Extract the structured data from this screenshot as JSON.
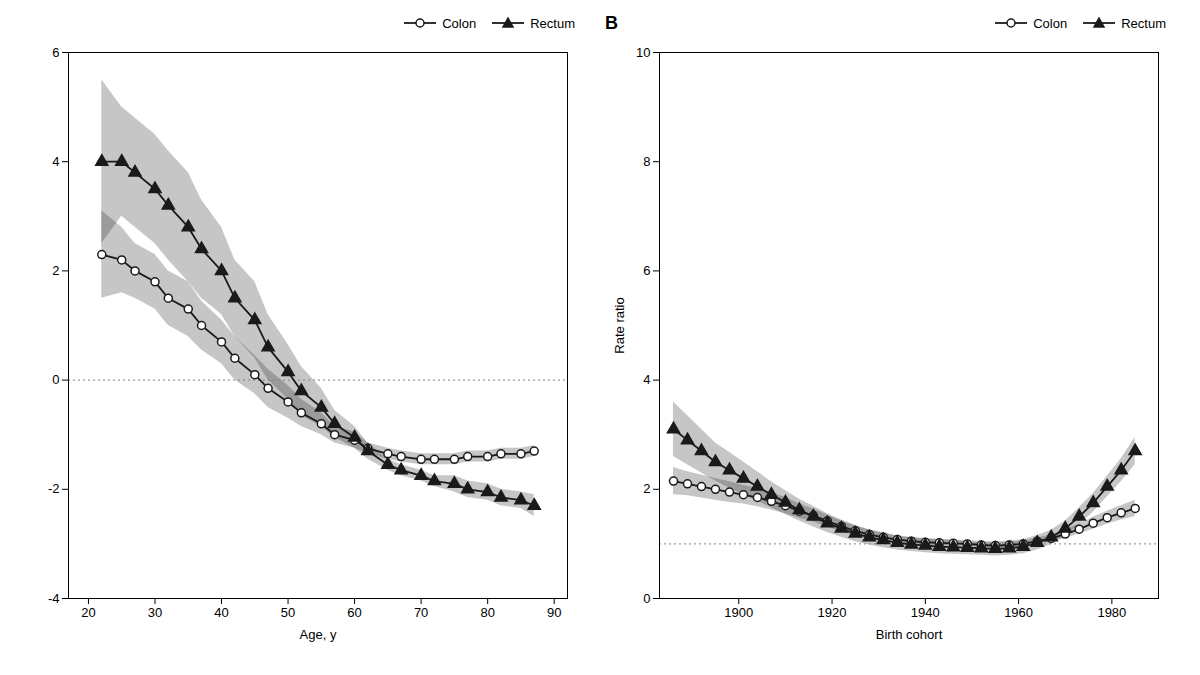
{
  "chart_data": [
    {
      "type": "line",
      "xlabel": "Age, y",
      "xlim": [
        17,
        92
      ],
      "ylim": [
        -4,
        6
      ],
      "xticks": [
        20,
        30,
        40,
        50,
        60,
        70,
        80,
        90
      ],
      "yticks": [
        -4,
        -2,
        0,
        2,
        4,
        6
      ],
      "reference_line": 0,
      "legend": "upper right",
      "series": [
        {
          "name": "Colon",
          "color": "#1a1a1a",
          "marker": "circle",
          "x": [
            22,
            25,
            27,
            30,
            32,
            35,
            37,
            40,
            42,
            45,
            47,
            50,
            52,
            55,
            57,
            60,
            62,
            65,
            67,
            70,
            72,
            75,
            77,
            80,
            82,
            85,
            87
          ],
          "values": [
            2.3,
            2.2,
            2.0,
            1.8,
            1.5,
            1.3,
            1.0,
            0.7,
            0.4,
            0.1,
            -0.15,
            -0.4,
            -0.6,
            -0.8,
            -1.0,
            -1.1,
            -1.25,
            -1.35,
            -1.4,
            -1.45,
            -1.45,
            -1.45,
            -1.4,
            -1.4,
            -1.35,
            -1.35,
            -1.3
          ],
          "lower": [
            1.5,
            1.6,
            1.5,
            1.3,
            1.0,
            0.8,
            0.55,
            0.3,
            0.0,
            -0.25,
            -0.5,
            -0.7,
            -0.85,
            -1.0,
            -1.15,
            -1.25,
            -1.35,
            -1.45,
            -1.5,
            -1.55,
            -1.55,
            -1.55,
            -1.5,
            -1.5,
            -1.45,
            -1.45,
            -1.4
          ],
          "upper": [
            3.1,
            2.8,
            2.5,
            2.3,
            2.0,
            1.8,
            1.45,
            1.1,
            0.8,
            0.45,
            0.2,
            -0.1,
            -0.35,
            -0.6,
            -0.85,
            -0.95,
            -1.15,
            -1.25,
            -1.3,
            -1.35,
            -1.35,
            -1.35,
            -1.3,
            -1.3,
            -1.25,
            -1.25,
            -1.2
          ]
        },
        {
          "name": "Rectum",
          "color": "#1a1a1a",
          "marker": "triangle",
          "x": [
            22,
            25,
            27,
            30,
            32,
            35,
            37,
            40,
            42,
            45,
            47,
            50,
            52,
            55,
            57,
            60,
            62,
            65,
            67,
            70,
            72,
            75,
            77,
            80,
            82,
            85,
            87
          ],
          "values": [
            4.0,
            4.0,
            3.8,
            3.5,
            3.2,
            2.8,
            2.4,
            2.0,
            1.5,
            1.1,
            0.6,
            0.15,
            -0.2,
            -0.5,
            -0.8,
            -1.05,
            -1.3,
            -1.55,
            -1.65,
            -1.75,
            -1.85,
            -1.9,
            -2.0,
            -2.05,
            -2.15,
            -2.2,
            -2.3
          ],
          "lower": [
            2.5,
            3.0,
            2.8,
            2.5,
            2.2,
            1.8,
            1.5,
            1.2,
            0.8,
            0.4,
            0.0,
            -0.35,
            -0.65,
            -0.85,
            -1.05,
            -1.25,
            -1.45,
            -1.65,
            -1.75,
            -1.85,
            -1.95,
            -2.05,
            -2.15,
            -2.2,
            -2.3,
            -2.35,
            -2.5
          ],
          "upper": [
            5.5,
            5.0,
            4.8,
            4.5,
            4.2,
            3.8,
            3.3,
            2.8,
            2.2,
            1.8,
            1.2,
            0.65,
            0.25,
            -0.15,
            -0.55,
            -0.85,
            -1.15,
            -1.45,
            -1.55,
            -1.65,
            -1.75,
            -1.75,
            -1.85,
            -1.9,
            -2.0,
            -2.05,
            -2.1
          ]
        }
      ]
    },
    {
      "type": "line",
      "title": "B",
      "xlabel": "Birth cohort",
      "ylabel": "Rate ratio",
      "xlim": [
        1883,
        1990
      ],
      "ylim": [
        0,
        10
      ],
      "xticks": [
        1900,
        1920,
        1940,
        1960,
        1980
      ],
      "yticks": [
        0,
        2,
        4,
        6,
        8,
        10
      ],
      "reference_line": 1,
      "legend": "upper right",
      "series": [
        {
          "name": "Colon",
          "color": "#1a1a1a",
          "marker": "circle",
          "x": [
            1886,
            1889,
            1892,
            1895,
            1898,
            1901,
            1904,
            1907,
            1910,
            1913,
            1916,
            1919,
            1922,
            1925,
            1928,
            1931,
            1934,
            1937,
            1940,
            1943,
            1946,
            1949,
            1952,
            1955,
            1958,
            1961,
            1964,
            1967,
            1970,
            1973,
            1976,
            1979,
            1982,
            1985
          ],
          "values": [
            2.15,
            2.1,
            2.05,
            2.0,
            1.95,
            1.9,
            1.85,
            1.78,
            1.7,
            1.6,
            1.52,
            1.42,
            1.32,
            1.24,
            1.17,
            1.12,
            1.08,
            1.05,
            1.03,
            1.02,
            1.01,
            1.0,
            0.98,
            0.97,
            0.98,
            1.0,
            1.05,
            1.1,
            1.18,
            1.27,
            1.38,
            1.48,
            1.57,
            1.65
          ],
          "lower": [
            1.9,
            1.88,
            1.84,
            1.8,
            1.76,
            1.73,
            1.68,
            1.62,
            1.55,
            1.47,
            1.4,
            1.31,
            1.22,
            1.15,
            1.09,
            1.05,
            1.02,
            0.99,
            0.97,
            0.96,
            0.96,
            0.96,
            0.94,
            0.93,
            0.93,
            0.95,
            0.99,
            1.04,
            1.1,
            1.18,
            1.27,
            1.36,
            1.44,
            1.5
          ],
          "upper": [
            2.4,
            2.32,
            2.26,
            2.2,
            2.14,
            2.07,
            2.02,
            1.94,
            1.85,
            1.73,
            1.64,
            1.53,
            1.42,
            1.33,
            1.25,
            1.19,
            1.14,
            1.11,
            1.09,
            1.08,
            1.06,
            1.04,
            1.02,
            1.01,
            1.03,
            1.05,
            1.11,
            1.16,
            1.26,
            1.36,
            1.49,
            1.6,
            1.7,
            1.8
          ]
        },
        {
          "name": "Rectum",
          "color": "#1a1a1a",
          "marker": "triangle",
          "x": [
            1886,
            1889,
            1892,
            1895,
            1898,
            1901,
            1904,
            1907,
            1910,
            1913,
            1916,
            1919,
            1922,
            1925,
            1928,
            1931,
            1934,
            1937,
            1940,
            1943,
            1946,
            1949,
            1952,
            1955,
            1958,
            1961,
            1964,
            1967,
            1970,
            1973,
            1976,
            1979,
            1982,
            1985
          ],
          "values": [
            3.1,
            2.9,
            2.7,
            2.5,
            2.35,
            2.2,
            2.05,
            1.9,
            1.76,
            1.62,
            1.5,
            1.38,
            1.28,
            1.19,
            1.12,
            1.07,
            1.02,
            0.99,
            0.97,
            0.95,
            0.94,
            0.93,
            0.92,
            0.91,
            0.92,
            0.95,
            1.02,
            1.12,
            1.28,
            1.5,
            1.75,
            2.05,
            2.35,
            2.7
          ],
          "lower": [
            2.6,
            2.45,
            2.3,
            2.15,
            2.02,
            1.9,
            1.78,
            1.66,
            1.54,
            1.42,
            1.31,
            1.21,
            1.12,
            1.04,
            0.98,
            0.93,
            0.89,
            0.86,
            0.84,
            0.82,
            0.81,
            0.8,
            0.79,
            0.78,
            0.79,
            0.82,
            0.89,
            0.99,
            1.14,
            1.34,
            1.58,
            1.86,
            2.14,
            2.45
          ],
          "upper": [
            3.6,
            3.35,
            3.1,
            2.85,
            2.68,
            2.5,
            2.32,
            2.14,
            1.98,
            1.82,
            1.69,
            1.55,
            1.44,
            1.34,
            1.26,
            1.21,
            1.15,
            1.12,
            1.1,
            1.08,
            1.07,
            1.06,
            1.05,
            1.04,
            1.05,
            1.08,
            1.15,
            1.25,
            1.42,
            1.66,
            1.92,
            2.24,
            2.56,
            2.95
          ]
        }
      ]
    }
  ]
}
